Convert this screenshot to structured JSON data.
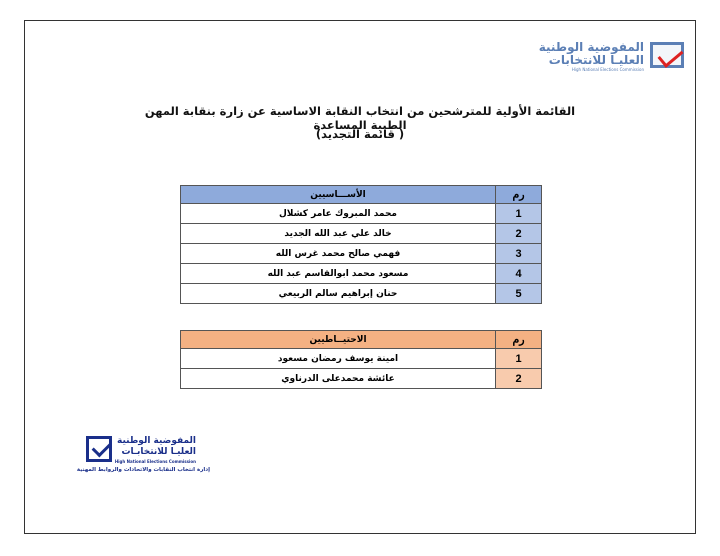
{
  "logo_top": {
    "line1": "المفوضية الوطنية",
    "line2": "العليـا للانتخابات",
    "line3": "High National Elections Commission"
  },
  "title": {
    "line1": "القائمة الأولية للمترشحين من انتخاب النقابة الاساسية عن زارة بنقابة المهن الطبية المساعدة",
    "line2": "( قائمة التجديد)"
  },
  "primary_table": {
    "headers": {
      "num": "رم",
      "name": "الأســـاسيين"
    },
    "color": "#8eaadb",
    "rows": [
      {
        "num": "1",
        "name": "محمد المبروك عامر كشلال"
      },
      {
        "num": "2",
        "name": "خالد علي عبد الله الجديد"
      },
      {
        "num": "3",
        "name": "فهمي صالح محمد غرس الله"
      },
      {
        "num": "4",
        "name": "مسعود محمد ابوالقاسم عبد الله"
      },
      {
        "num": "5",
        "name": "حنان إبراهيم سالم الربيعي"
      }
    ]
  },
  "reserve_table": {
    "headers": {
      "num": "رم",
      "name": "الاحتيــاطيين"
    },
    "color": "#f4b183",
    "rows": [
      {
        "num": "1",
        "name": "امينة يوسف رمضان مسعود"
      },
      {
        "num": "2",
        "name": "عائشة محمدعلى الدرناوي"
      }
    ]
  },
  "logo_bottom": {
    "line1": "المفوضية الوطنية",
    "line2": "العليـا للانتخابـات",
    "line3": "High National Elections Commission",
    "line4": "إدارة انتخاب النقابات والاتحادات والروابط المهنية"
  }
}
